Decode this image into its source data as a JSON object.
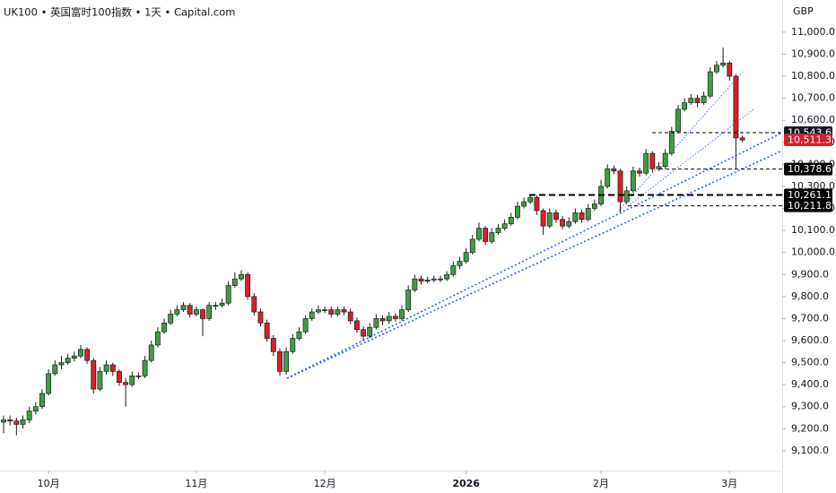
{
  "chart_data": {
    "type": "candlestick",
    "title": "UK100 • 英国富时100指数 • 1天 • Capital.com",
    "y_unit": "GBP",
    "up_color": "#3f9c48",
    "down_color": "#d4212c",
    "ylim": [
      9010,
      11146
    ],
    "xlim": [
      -0.56,
      121.2
    ],
    "yticks": [
      {
        "value": 9100,
        "label": "9,100.0"
      },
      {
        "value": 9200,
        "label": "9,200.0"
      },
      {
        "value": 9300,
        "label": "9,300.0"
      },
      {
        "value": 9400,
        "label": "9,400.0"
      },
      {
        "value": 9500,
        "label": "9,500.0"
      },
      {
        "value": 9600,
        "label": "9,600.0"
      },
      {
        "value": 9700,
        "label": "9,700.0"
      },
      {
        "value": 9800,
        "label": "9,800.0"
      },
      {
        "value": 9900,
        "label": "9,900.0"
      },
      {
        "value": 10000,
        "label": "10,000.0"
      },
      {
        "value": 10100,
        "label": "10,100.0"
      },
      {
        "value": 10200,
        "label": "10,200.0"
      },
      {
        "value": 10300,
        "label": "10,300.0"
      },
      {
        "value": 10400,
        "label": "10,400.0"
      },
      {
        "value": 10500,
        "label": "10,500.0"
      },
      {
        "value": 10600,
        "label": "10,600.0"
      },
      {
        "value": 10700,
        "label": "10,700.0"
      },
      {
        "value": 10800,
        "label": "10,800.0"
      },
      {
        "value": 10900,
        "label": "10,900.0"
      },
      {
        "value": 11000,
        "label": "11,000.0"
      }
    ],
    "xticks": [
      {
        "value": 7,
        "label": "10月"
      },
      {
        "value": 30,
        "label": "11月"
      },
      {
        "value": 50,
        "label": "12月"
      },
      {
        "value": 72,
        "label": "2026"
      },
      {
        "value": 93,
        "label": "2月"
      },
      {
        "value": 113,
        "label": "3月"
      }
    ],
    "price_lines": [
      {
        "value": 10543.6,
        "label": "10,543.6",
        "color": "#131722"
      },
      {
        "value": 10511.3,
        "label": "10,511.3",
        "color": "#d4212c"
      },
      {
        "value": 10378.6,
        "label": "10,378.6",
        "color": "#000000"
      },
      {
        "value": 10261.1,
        "label": "10,261.1",
        "color": "#000000"
      },
      {
        "value": 10211.8,
        "label": "10,211.8",
        "color": "#000000"
      }
    ],
    "open": [
      9230,
      9240,
      9235,
      9220,
      9240,
      9280,
      9300,
      9360,
      9450,
      9490,
      9500,
      9520,
      9530,
      9560,
      9510,
      9380,
      9460,
      9490,
      9460,
      9410,
      9400,
      9440,
      9440,
      9510,
      9580,
      9640,
      9680,
      9720,
      9740,
      9760,
      9720,
      9740,
      9700,
      9760,
      9760,
      9770,
      9850,
      9880,
      9900,
      9800,
      9730,
      9680,
      9610,
      9550,
      9460,
      9550,
      9610,
      9640,
      9700,
      9730,
      9740,
      9740,
      9720,
      9740,
      9730,
      9690,
      9650,
      9620,
      9660,
      9700,
      9690,
      9710,
      9700,
      9740,
      9830,
      9880,
      9870,
      9875,
      9880,
      9880,
      9900,
      9940,
      9960,
      10000,
      10060,
      10110,
      10050,
      10090,
      10110,
      10130,
      10160,
      10210,
      10230,
      10250,
      10190,
      10120,
      10180,
      10150,
      10120,
      10140,
      10180,
      10150,
      10200,
      10220,
      10300,
      10380,
      10370,
      10230,
      10280,
      10370,
      10360,
      10450,
      10380,
      10390,
      10450,
      10550,
      10650,
      10680,
      10700,
      10680,
      10710,
      10820,
      10850,
      10860,
      10800,
      10520
    ],
    "high": [
      9260,
      9260,
      9250,
      9260,
      9300,
      9320,
      9380,
      9470,
      9510,
      9530,
      9540,
      9550,
      9580,
      9570,
      9520,
      9480,
      9510,
      9500,
      9470,
      9430,
      9460,
      9455,
      9530,
      9600,
      9660,
      9700,
      9740,
      9760,
      9775,
      9770,
      9755,
      9745,
      9775,
      9775,
      9790,
      9870,
      9910,
      9920,
      9910,
      9815,
      9745,
      9695,
      9625,
      9565,
      9570,
      9630,
      9660,
      9715,
      9745,
      9760,
      9755,
      9755,
      9755,
      9755,
      9745,
      9705,
      9665,
      9680,
      9720,
      9715,
      9730,
      9725,
      9760,
      9850,
      9900,
      9895,
      9890,
      9895,
      9895,
      9915,
      9960,
      9980,
      10020,
      10080,
      10135,
      10120,
      10110,
      10130,
      10150,
      10180,
      10230,
      10250,
      10265,
      10260,
      10200,
      10200,
      10195,
      10165,
      10160,
      10200,
      10195,
      10220,
      10240,
      10330,
      10400,
      10395,
      10380,
      10300,
      10390,
      10385,
      10470,
      10460,
      10410,
      10470,
      10570,
      10670,
      10700,
      10720,
      10715,
      10730,
      10840,
      10870,
      10930,
      10870,
      10810,
      10530
    ],
    "low": [
      9180,
      9215,
      9170,
      9200,
      9225,
      9265,
      9290,
      9350,
      9440,
      9470,
      9490,
      9505,
      9520,
      9495,
      9360,
      9370,
      9445,
      9440,
      9395,
      9300,
      9390,
      9425,
      9430,
      9500,
      9570,
      9630,
      9670,
      9710,
      9730,
      9705,
      9710,
      9620,
      9690,
      9740,
      9750,
      9760,
      9840,
      9870,
      9785,
      9715,
      9665,
      9595,
      9530,
      9440,
      9445,
      9540,
      9600,
      9630,
      9690,
      9720,
      9725,
      9705,
      9710,
      9715,
      9675,
      9635,
      9600,
      9610,
      9650,
      9670,
      9675,
      9685,
      9690,
      9730,
      9820,
      9855,
      9860,
      9865,
      9865,
      9870,
      9890,
      9925,
      9950,
      9990,
      10050,
      10035,
      10040,
      10080,
      10100,
      10120,
      10150,
      10200,
      10220,
      10170,
      10080,
      10110,
      10135,
      10105,
      10110,
      10130,
      10135,
      10140,
      10190,
      10210,
      10290,
      10355,
      10180,
      10220,
      10270,
      10345,
      10350,
      10365,
      10370,
      10380,
      10440,
      10540,
      10640,
      10670,
      10660,
      10670,
      10700,
      10810,
      10840,
      10780,
      10380,
      10500
    ],
    "close": [
      9240,
      9235,
      9220,
      9240,
      9280,
      9300,
      9360,
      9450,
      9490,
      9500,
      9520,
      9530,
      9560,
      9510,
      9380,
      9460,
      9490,
      9460,
      9410,
      9400,
      9440,
      9440,
      9510,
      9580,
      9640,
      9680,
      9720,
      9740,
      9760,
      9720,
      9740,
      9700,
      9760,
      9760,
      9770,
      9850,
      9880,
      9900,
      9800,
      9730,
      9680,
      9610,
      9550,
      9460,
      9550,
      9610,
      9640,
      9700,
      9730,
      9740,
      9740,
      9720,
      9740,
      9730,
      9690,
      9650,
      9620,
      9660,
      9700,
      9690,
      9710,
      9700,
      9740,
      9830,
      9880,
      9870,
      9875,
      9880,
      9880,
      9900,
      9940,
      9960,
      10000,
      10060,
      10110,
      10050,
      10090,
      10110,
      10130,
      10160,
      10210,
      10230,
      10250,
      10190,
      10120,
      10180,
      10150,
      10120,
      10140,
      10180,
      10150,
      10200,
      10220,
      10300,
      10380,
      10370,
      10230,
      10280,
      10370,
      10360,
      10450,
      10380,
      10390,
      10450,
      10550,
      10650,
      10680,
      10700,
      10680,
      10710,
      10820,
      10850,
      10860,
      10800,
      10520,
      10511
    ]
  }
}
